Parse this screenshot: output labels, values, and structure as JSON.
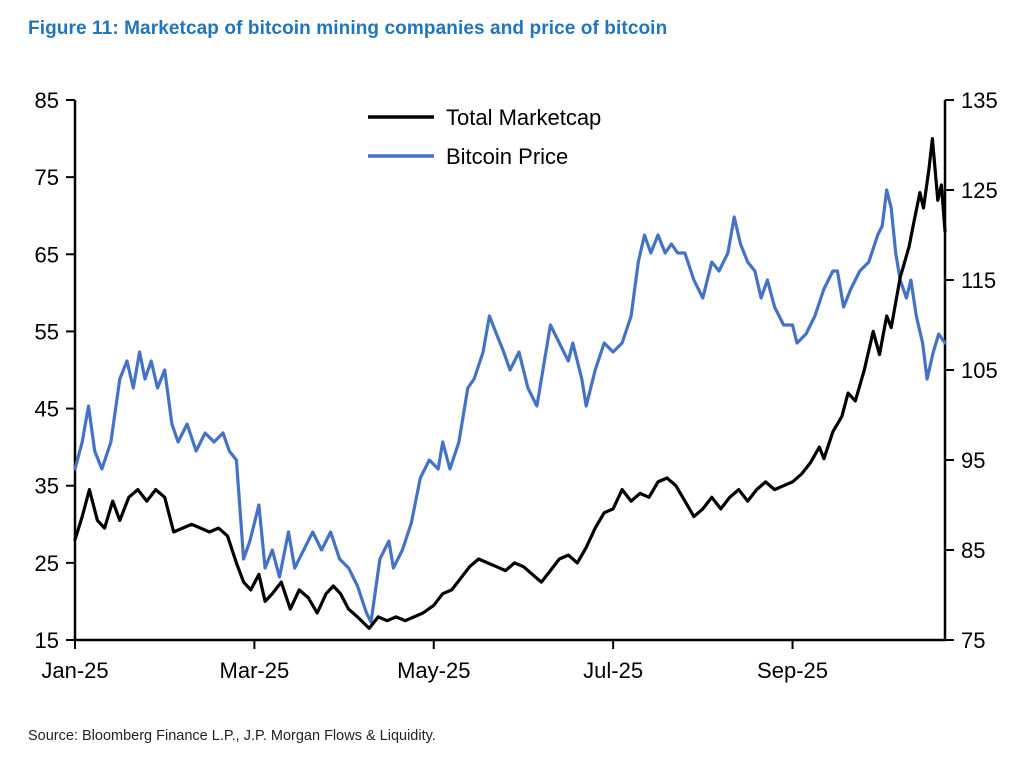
{
  "title": "Figure 11: Marketcap of bitcoin mining companies and price of bitcoin",
  "source": "Source: Bloomberg Finance L.P., J.P. Morgan Flows & Liquidity.",
  "colors": {
    "title_blue": "#2175BC",
    "marketcap_line": "#000000",
    "bitcoin_line": "#4472C4"
  },
  "chart_data": {
    "type": "line",
    "title": "Figure 11: Marketcap of bitcoin mining companies and price of bitcoin",
    "xlabel": "",
    "x_tick_labels": [
      "Jan-25",
      "Mar-25",
      "May-25",
      "Jul-25",
      "Sep-25"
    ],
    "x_tick_positions": [
      0,
      2,
      4,
      6,
      8
    ],
    "xlim": [
      0,
      9.7
    ],
    "grid": false,
    "legend_position": "top-center-inside",
    "left_axis": {
      "lim": [
        15,
        85
      ],
      "ticks": [
        15,
        25,
        35,
        45,
        55,
        65,
        75,
        85
      ]
    },
    "right_axis": {
      "lim": [
        75,
        135
      ],
      "ticks": [
        75,
        85,
        95,
        105,
        115,
        125,
        135
      ]
    },
    "series": [
      {
        "name": "Total Marketcap",
        "slug": "total-marketcap",
        "axis": "left",
        "color": "#000000",
        "points": [
          [
            0,
            28
          ],
          [
            0.08,
            31
          ],
          [
            0.16,
            34.5
          ],
          [
            0.25,
            30.5
          ],
          [
            0.33,
            29.5
          ],
          [
            0.42,
            33
          ],
          [
            0.5,
            30.5
          ],
          [
            0.6,
            33.5
          ],
          [
            0.7,
            34.5
          ],
          [
            0.8,
            33
          ],
          [
            0.9,
            34.5
          ],
          [
            1.0,
            33.5
          ],
          [
            1.1,
            29
          ],
          [
            1.2,
            29.5
          ],
          [
            1.3,
            30
          ],
          [
            1.4,
            29.5
          ],
          [
            1.5,
            29
          ],
          [
            1.6,
            29.5
          ],
          [
            1.7,
            28.5
          ],
          [
            1.8,
            25
          ],
          [
            1.88,
            22.5
          ],
          [
            1.96,
            21.5
          ],
          [
            2.05,
            23.5
          ],
          [
            2.12,
            20
          ],
          [
            2.2,
            21
          ],
          [
            2.3,
            22.5
          ],
          [
            2.4,
            19
          ],
          [
            2.5,
            21.5
          ],
          [
            2.6,
            20.5
          ],
          [
            2.7,
            18.5
          ],
          [
            2.8,
            21
          ],
          [
            2.88,
            22
          ],
          [
            2.96,
            21
          ],
          [
            3.05,
            19
          ],
          [
            3.15,
            18
          ],
          [
            3.28,
            16.5
          ],
          [
            3.38,
            18
          ],
          [
            3.48,
            17.5
          ],
          [
            3.58,
            18
          ],
          [
            3.68,
            17.5
          ],
          [
            3.78,
            18
          ],
          [
            3.88,
            18.5
          ],
          [
            4.0,
            19.5
          ],
          [
            4.1,
            21
          ],
          [
            4.2,
            21.5
          ],
          [
            4.3,
            23
          ],
          [
            4.4,
            24.5
          ],
          [
            4.5,
            25.5
          ],
          [
            4.6,
            25
          ],
          [
            4.7,
            24.5
          ],
          [
            4.8,
            24
          ],
          [
            4.9,
            25
          ],
          [
            5.0,
            24.5
          ],
          [
            5.1,
            23.5
          ],
          [
            5.2,
            22.5
          ],
          [
            5.3,
            24
          ],
          [
            5.4,
            25.5
          ],
          [
            5.5,
            26
          ],
          [
            5.6,
            25
          ],
          [
            5.7,
            27
          ],
          [
            5.8,
            29.5
          ],
          [
            5.9,
            31.5
          ],
          [
            6.0,
            32
          ],
          [
            6.1,
            34.5
          ],
          [
            6.2,
            33
          ],
          [
            6.3,
            34
          ],
          [
            6.4,
            33.5
          ],
          [
            6.5,
            35.5
          ],
          [
            6.6,
            36
          ],
          [
            6.7,
            35
          ],
          [
            6.8,
            33
          ],
          [
            6.9,
            31
          ],
          [
            7.0,
            32
          ],
          [
            7.1,
            33.5
          ],
          [
            7.2,
            32
          ],
          [
            7.3,
            33.5
          ],
          [
            7.4,
            34.5
          ],
          [
            7.5,
            33
          ],
          [
            7.6,
            34.5
          ],
          [
            7.7,
            35.5
          ],
          [
            7.8,
            34.5
          ],
          [
            7.9,
            35
          ],
          [
            8.0,
            35.5
          ],
          [
            8.1,
            36.5
          ],
          [
            8.2,
            38
          ],
          [
            8.3,
            40
          ],
          [
            8.35,
            38.5
          ],
          [
            8.45,
            42
          ],
          [
            8.55,
            44
          ],
          [
            8.62,
            47
          ],
          [
            8.7,
            46
          ],
          [
            8.8,
            50
          ],
          [
            8.9,
            55
          ],
          [
            8.97,
            52
          ],
          [
            9.05,
            57
          ],
          [
            9.1,
            55.5
          ],
          [
            9.2,
            62
          ],
          [
            9.3,
            66
          ],
          [
            9.35,
            69
          ],
          [
            9.42,
            73
          ],
          [
            9.46,
            71
          ],
          [
            9.52,
            76
          ],
          [
            9.56,
            80
          ],
          [
            9.62,
            72
          ],
          [
            9.66,
            74
          ],
          [
            9.7,
            68
          ]
        ]
      },
      {
        "name": "Bitcoin Price",
        "slug": "bitcoin-price",
        "axis": "right",
        "color": "#4472C4",
        "points": [
          [
            0,
            94
          ],
          [
            0.08,
            97
          ],
          [
            0.15,
            101
          ],
          [
            0.22,
            96
          ],
          [
            0.3,
            94
          ],
          [
            0.4,
            97
          ],
          [
            0.5,
            104
          ],
          [
            0.58,
            106
          ],
          [
            0.65,
            103
          ],
          [
            0.72,
            107
          ],
          [
            0.78,
            104
          ],
          [
            0.85,
            106
          ],
          [
            0.92,
            103
          ],
          [
            1.0,
            105
          ],
          [
            1.08,
            99
          ],
          [
            1.15,
            97
          ],
          [
            1.25,
            99
          ],
          [
            1.35,
            96
          ],
          [
            1.45,
            98
          ],
          [
            1.55,
            97
          ],
          [
            1.65,
            98
          ],
          [
            1.72,
            96
          ],
          [
            1.8,
            95
          ],
          [
            1.88,
            84
          ],
          [
            1.95,
            86
          ],
          [
            2.05,
            90
          ],
          [
            2.12,
            83
          ],
          [
            2.2,
            85
          ],
          [
            2.28,
            82
          ],
          [
            2.38,
            87
          ],
          [
            2.45,
            83
          ],
          [
            2.55,
            85
          ],
          [
            2.65,
            87
          ],
          [
            2.75,
            85
          ],
          [
            2.85,
            87
          ],
          [
            2.95,
            84
          ],
          [
            3.05,
            83
          ],
          [
            3.15,
            81
          ],
          [
            3.25,
            78
          ],
          [
            3.3,
            77
          ],
          [
            3.4,
            84
          ],
          [
            3.5,
            86
          ],
          [
            3.55,
            83
          ],
          [
            3.65,
            85
          ],
          [
            3.75,
            88
          ],
          [
            3.85,
            93
          ],
          [
            3.95,
            95
          ],
          [
            4.05,
            94
          ],
          [
            4.1,
            97
          ],
          [
            4.18,
            94
          ],
          [
            4.28,
            97
          ],
          [
            4.38,
            103
          ],
          [
            4.45,
            104
          ],
          [
            4.55,
            107
          ],
          [
            4.62,
            111
          ],
          [
            4.7,
            109
          ],
          [
            4.78,
            107
          ],
          [
            4.85,
            105
          ],
          [
            4.95,
            107
          ],
          [
            5.05,
            103
          ],
          [
            5.15,
            101
          ],
          [
            5.25,
            107
          ],
          [
            5.3,
            110
          ],
          [
            5.4,
            108
          ],
          [
            5.5,
            106
          ],
          [
            5.55,
            108
          ],
          [
            5.65,
            104
          ],
          [
            5.7,
            101
          ],
          [
            5.8,
            105
          ],
          [
            5.9,
            108
          ],
          [
            6.0,
            107
          ],
          [
            6.1,
            108
          ],
          [
            6.2,
            111
          ],
          [
            6.28,
            117
          ],
          [
            6.35,
            120
          ],
          [
            6.42,
            118
          ],
          [
            6.5,
            120
          ],
          [
            6.58,
            118
          ],
          [
            6.65,
            119
          ],
          [
            6.72,
            118
          ],
          [
            6.8,
            118
          ],
          [
            6.9,
            115
          ],
          [
            7.0,
            113
          ],
          [
            7.1,
            117
          ],
          [
            7.18,
            116
          ],
          [
            7.28,
            118
          ],
          [
            7.35,
            122
          ],
          [
            7.42,
            119
          ],
          [
            7.5,
            117
          ],
          [
            7.58,
            116
          ],
          [
            7.65,
            113
          ],
          [
            7.72,
            115
          ],
          [
            7.8,
            112
          ],
          [
            7.9,
            110
          ],
          [
            8.0,
            110
          ],
          [
            8.05,
            108
          ],
          [
            8.15,
            109
          ],
          [
            8.25,
            111
          ],
          [
            8.35,
            114
          ],
          [
            8.45,
            116
          ],
          [
            8.5,
            116
          ],
          [
            8.57,
            112
          ],
          [
            8.65,
            114
          ],
          [
            8.75,
            116
          ],
          [
            8.85,
            117
          ],
          [
            8.95,
            120
          ],
          [
            9.0,
            121
          ],
          [
            9.05,
            125
          ],
          [
            9.1,
            123
          ],
          [
            9.15,
            118
          ],
          [
            9.2,
            115
          ],
          [
            9.27,
            113
          ],
          [
            9.32,
            115
          ],
          [
            9.38,
            111
          ],
          [
            9.45,
            108
          ],
          [
            9.5,
            104
          ],
          [
            9.57,
            107
          ],
          [
            9.63,
            109
          ],
          [
            9.7,
            108
          ]
        ]
      }
    ]
  }
}
